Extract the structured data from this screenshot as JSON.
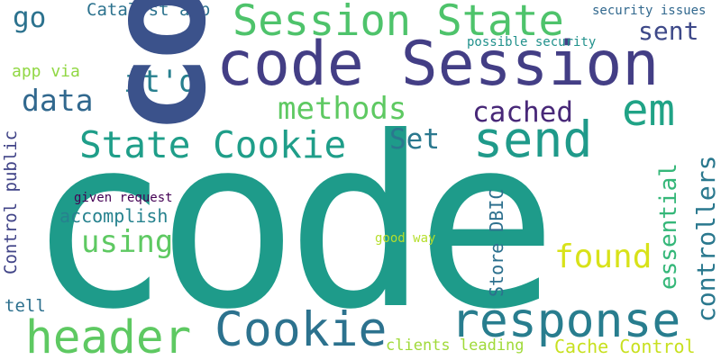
{
  "words": [
    {
      "id": "w-code-big",
      "text": "code",
      "color": "#1e9b8a"
    },
    {
      "id": "w-code-rot",
      "text": "code",
      "color": "#3b528b"
    },
    {
      "id": "w-code-session",
      "text": "code Session",
      "color": "#433e85"
    },
    {
      "id": "w-session-state",
      "text": "Session State",
      "color": "#4ec36b"
    },
    {
      "id": "w-state-cookie",
      "text": "State Cookie",
      "color": "#1f9e89"
    },
    {
      "id": "w-response",
      "text": "response",
      "color": "#287d8e"
    },
    {
      "id": "w-header",
      "text": "header",
      "color": "#5ec962"
    },
    {
      "id": "w-cookie",
      "text": "Cookie",
      "color": "#2c728e"
    },
    {
      "id": "w-send",
      "text": "send",
      "color": "#1f9a8a"
    },
    {
      "id": "w-em",
      "text": "em",
      "color": "#20a386"
    },
    {
      "id": "w-methods",
      "text": "methods",
      "color": "#5ec962"
    },
    {
      "id": "w-cached",
      "text": "cached",
      "color": "#482878"
    },
    {
      "id": "w-itd",
      "text": "it'd",
      "color": "#277f8e"
    },
    {
      "id": "w-data",
      "text": "data",
      "color": "#31688e"
    },
    {
      "id": "w-using",
      "text": "using",
      "color": "#5ec962"
    },
    {
      "id": "w-found",
      "text": "found",
      "color": "#d8e219"
    },
    {
      "id": "w-set",
      "text": "Set",
      "color": "#2a788e"
    },
    {
      "id": "w-sent",
      "text": "sent",
      "color": "#3e4989"
    },
    {
      "id": "w-go",
      "text": "go",
      "color": "#2c728e"
    },
    {
      "id": "w-catalyst-app",
      "text": "Catalyst app",
      "color": "#2c728e"
    },
    {
      "id": "w-security-issues",
      "text": "security issues",
      "color": "#31688e"
    },
    {
      "id": "w-possible-security",
      "text": "possible security",
      "color": "#21918c"
    },
    {
      "id": "w-app-via",
      "text": "app via",
      "color": "#90d743"
    },
    {
      "id": "w-accomplish",
      "text": "accomplish",
      "color": "#26828e"
    },
    {
      "id": "w-given-request",
      "text": "given request",
      "color": "#440154"
    },
    {
      "id": "w-good-way",
      "text": "good way",
      "color": "#b5de2b"
    },
    {
      "id": "w-tell",
      "text": "tell",
      "color": "#2d708e"
    },
    {
      "id": "w-clients-leading",
      "text": "clients leading",
      "color": "#a0da39"
    },
    {
      "id": "w-cache-control",
      "text": "Cache Control",
      "color": "#c8e020"
    },
    {
      "id": "w-essential",
      "text": "essential",
      "color": "#35b779"
    },
    {
      "id": "w-controllers",
      "text": "controllers",
      "color": "#2a788e"
    },
    {
      "id": "w-store-dbic",
      "text": "Store DBIC",
      "color": "#2d708e"
    },
    {
      "id": "w-control-public",
      "text": "Control public",
      "color": "#404387"
    }
  ]
}
